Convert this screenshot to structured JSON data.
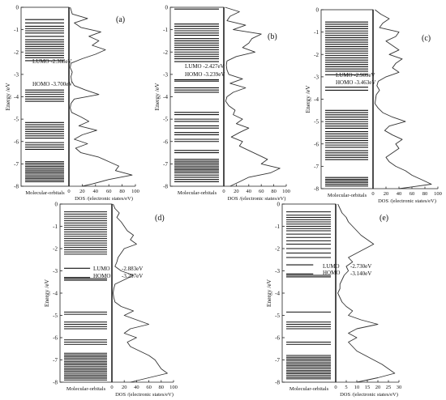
{
  "chart_data": [
    {
      "type": "line",
      "panel_label": "(a)",
      "ylabel": "Energy /eV",
      "ylim": [
        -8,
        0
      ],
      "yticks": [
        "0",
        "-1",
        "-2",
        "-3",
        "-4",
        "-5",
        "-6",
        "-7",
        "-8"
      ],
      "left_xlabel": "Molecular-orbitals",
      "xlabel": "DOS /(electronic states/eV)",
      "xlim": [
        0,
        100
      ],
      "xticks": [
        "0",
        "20",
        "40",
        "60",
        "80",
        "100"
      ],
      "lumo_label": "LUMO  -2.388eV",
      "homo_label": "HOMO  -3.700eV",
      "lumo": -2.388,
      "homo": -3.7,
      "orbitals": [
        -0.55,
        -0.7,
        -0.85,
        -0.95,
        -1.05,
        -1.15,
        -1.3,
        -1.45,
        -1.55,
        -1.65,
        -1.75,
        -1.85,
        -1.95,
        -2.05,
        -2.15,
        -2.25,
        -2.388,
        -3.7,
        -3.8,
        -3.9,
        -4.0,
        -4.1,
        -4.2,
        -5.15,
        -5.25,
        -5.35,
        -5.45,
        -5.55,
        -5.65,
        -5.75,
        -5.85,
        -6.05,
        -6.15,
        -6.25,
        -6.35,
        -6.9,
        -6.97,
        -7.05,
        -7.12,
        -7.2,
        -7.28,
        -7.35,
        -7.42,
        -7.5,
        -7.58,
        -7.65,
        -7.72,
        -7.8
      ],
      "dos_energy": [
        0,
        -0.3,
        -0.5,
        -0.7,
        -0.9,
        -1.1,
        -1.3,
        -1.5,
        -1.7,
        -1.9,
        -2.1,
        -2.3,
        -2.5,
        -2.7,
        -2.9,
        -3.1,
        -3.3,
        -3.5,
        -3.7,
        -3.9,
        -4.1,
        -4.3,
        -4.5,
        -4.7,
        -4.9,
        -5.1,
        -5.3,
        -5.5,
        -5.7,
        -5.9,
        -6.1,
        -6.3,
        -6.5,
        -6.7,
        -6.9,
        -7.1,
        -7.3,
        -7.5,
        -7.7,
        -7.9,
        -8.0
      ],
      "dos_values": [
        2,
        5,
        28,
        8,
        18,
        48,
        30,
        45,
        35,
        55,
        40,
        20,
        3,
        2,
        5,
        3,
        4,
        8,
        25,
        45,
        8,
        3,
        2,
        4,
        18,
        30,
        15,
        42,
        20,
        8,
        28,
        10,
        18,
        45,
        60,
        75,
        70,
        95,
        60,
        35,
        20
      ]
    },
    {
      "type": "line",
      "panel_label": "(b)",
      "ylabel": "Energy /eV",
      "ylim": [
        -8,
        0
      ],
      "yticks": [
        "0",
        "-1",
        "-2",
        "-3",
        "-4",
        "-5",
        "-6",
        "-7",
        "-8"
      ],
      "left_xlabel": "Molecular-orbitals",
      "xlabel": "DOS /(electronic states/eV)",
      "xlim": [
        0,
        100
      ],
      "xticks": [
        "0",
        "20",
        "40",
        "60",
        "80",
        "100"
      ],
      "lumo_label": "LUMO  -2.427eV",
      "homo_label": "HOMO  -3.239eV",
      "lumo": -2.427,
      "homo": -3.239,
      "orbitals": [
        -0.08,
        -0.75,
        -0.85,
        -0.95,
        -1.05,
        -1.15,
        -1.25,
        -1.4,
        -1.5,
        -1.6,
        -1.7,
        -1.8,
        -1.9,
        -2.0,
        -2.1,
        -2.2,
        -2.3,
        -2.427,
        -3.239,
        -3.3,
        -3.6,
        -3.7,
        -3.8,
        -4.7,
        -4.8,
        -5.0,
        -5.1,
        -5.3,
        -5.4,
        -5.6,
        -5.7,
        -5.9,
        -6.0,
        -6.4,
        -6.5,
        -6.8,
        -6.88,
        -6.95,
        -7.02,
        -7.1,
        -7.18,
        -7.25,
        -7.32,
        -7.4,
        -7.5,
        -7.6,
        -7.7,
        -7.8
      ],
      "dos_energy": [
        0,
        -0.2,
        -0.4,
        -0.6,
        -0.8,
        -1.0,
        -1.2,
        -1.4,
        -1.6,
        -1.8,
        -2.0,
        -2.2,
        -2.4,
        -2.6,
        -2.8,
        -3.0,
        -3.2,
        -3.4,
        -3.6,
        -3.8,
        -4.0,
        -4.2,
        -4.4,
        -4.6,
        -4.8,
        -5.0,
        -5.2,
        -5.4,
        -5.6,
        -5.8,
        -6.0,
        -6.2,
        -6.4,
        -6.6,
        -6.8,
        -7.0,
        -7.2,
        -7.4,
        -7.6,
        -7.8,
        -8.0
      ],
      "dos_values": [
        2,
        25,
        10,
        5,
        35,
        15,
        60,
        45,
        40,
        30,
        50,
        20,
        5,
        4,
        5,
        8,
        30,
        10,
        35,
        15,
        5,
        3,
        8,
        18,
        15,
        30,
        20,
        40,
        25,
        12,
        30,
        25,
        40,
        55,
        70,
        60,
        90,
        75,
        40,
        25,
        10
      ]
    },
    {
      "type": "line",
      "panel_label": "(c)",
      "ylabel": "Energy /eV",
      "ylim": [
        -8,
        0
      ],
      "yticks": [
        "0",
        "-1",
        "-2",
        "-3",
        "-4",
        "-5",
        "-6",
        "-7",
        "-8"
      ],
      "left_xlabel": "Molecular-orbitals",
      "xlabel": "DOS /(electronic states/eV)",
      "xlim": [
        0,
        100
      ],
      "xticks": [
        "0",
        "20",
        "40",
        "60",
        "80",
        "100"
      ],
      "lumo_label": "LUMO  -2.909eV",
      "homo_label": "HOMO  -3.463eV",
      "lumo": -2.909,
      "homo": -3.463,
      "orbitals": [
        -0.55,
        -0.65,
        -0.75,
        -0.85,
        -0.95,
        -1.05,
        -1.15,
        -1.25,
        -1.35,
        -1.45,
        -1.55,
        -1.65,
        -1.75,
        -1.85,
        -1.95,
        -2.05,
        -2.15,
        -2.25,
        -2.35,
        -2.45,
        -2.55,
        -2.65,
        -2.75,
        -2.909,
        -3.463,
        -3.6,
        -4.5,
        -4.6,
        -4.7,
        -4.8,
        -4.9,
        -5.0,
        -5.1,
        -5.2,
        -5.3,
        -5.45,
        -5.55,
        -5.65,
        -5.75,
        -5.85,
        -5.95,
        -6.05,
        -6.15,
        -6.3,
        -6.4,
        -6.5,
        -6.6,
        -6.7,
        -7.5,
        -7.58,
        -7.65,
        -7.72,
        -7.8,
        -7.88
      ],
      "dos_energy": [
        0,
        -0.2,
        -0.4,
        -0.6,
        -0.8,
        -1.0,
        -1.2,
        -1.4,
        -1.6,
        -1.8,
        -2.0,
        -2.2,
        -2.4,
        -2.6,
        -2.8,
        -3.0,
        -3.2,
        -3.4,
        -3.6,
        -3.8,
        -4.0,
        -4.2,
        -4.4,
        -4.6,
        -4.8,
        -5.0,
        -5.2,
        -5.4,
        -5.6,
        -5.8,
        -6.0,
        -6.2,
        -6.4,
        -6.6,
        -6.8,
        -7.0,
        -7.2,
        -7.4,
        -7.6,
        -7.8,
        -8.0
      ],
      "dos_values": [
        3,
        12,
        25,
        15,
        10,
        40,
        35,
        20,
        30,
        40,
        25,
        45,
        35,
        30,
        40,
        20,
        8,
        6,
        10,
        5,
        4,
        3,
        8,
        15,
        30,
        50,
        25,
        18,
        30,
        45,
        35,
        40,
        30,
        20,
        25,
        35,
        50,
        60,
        75,
        90,
        40
      ]
    },
    {
      "type": "line",
      "panel_label": "(d)",
      "ylabel": "Energy /eV",
      "ylim": [
        -8,
        0
      ],
      "yticks": [
        "0",
        "-1",
        "-2",
        "-3",
        "-4",
        "-5",
        "-6",
        "-7",
        "-8"
      ],
      "left_xlabel": "Molecular-orbitals",
      "xlabel": "DOS /(electronic states/eV)",
      "xlim": [
        0,
        100
      ],
      "xticks": [
        "0",
        "20",
        "40",
        "60",
        "80",
        "100"
      ],
      "lumo_label": "LUMO",
      "homo_label": "HOMO",
      "lumo_value": "-2.883eV",
      "homo_value": "-3.297eV",
      "lumo": -2.883,
      "homo": -3.297,
      "orbitals": [
        -0.35,
        -0.45,
        -0.55,
        -0.65,
        -0.75,
        -0.85,
        -0.95,
        -1.05,
        -1.15,
        -1.25,
        -1.35,
        -1.45,
        -1.55,
        -1.65,
        -1.75,
        -1.85,
        -1.95,
        -2.05,
        -2.15,
        -2.25,
        -2.883,
        -3.297,
        -3.35,
        -3.42,
        -4.85,
        -4.95,
        -5.3,
        -5.4,
        -5.5,
        -5.6,
        -6.1,
        -6.2,
        -6.3,
        -6.7,
        -6.78,
        -6.85,
        -6.92,
        -7.0,
        -7.08,
        -7.15,
        -7.22,
        -7.3,
        -7.38,
        -7.45,
        -7.52,
        -7.6,
        -7.68,
        -7.75,
        -7.82,
        -7.9
      ],
      "dos_energy": [
        0,
        -0.2,
        -0.4,
        -0.6,
        -0.8,
        -1.0,
        -1.2,
        -1.4,
        -1.6,
        -1.8,
        -2.0,
        -2.2,
        -2.4,
        -2.6,
        -2.8,
        -3.0,
        -3.2,
        -3.4,
        -3.6,
        -3.8,
        -4.0,
        -4.2,
        -4.4,
        -4.6,
        -4.8,
        -5.0,
        -5.2,
        -5.4,
        -5.6,
        -5.8,
        -6.0,
        -6.2,
        -6.4,
        -6.6,
        -6.8,
        -7.0,
        -7.2,
        -7.4,
        -7.6,
        -7.8,
        -8.0
      ],
      "dos_values": [
        2,
        5,
        12,
        8,
        15,
        20,
        25,
        35,
        30,
        40,
        20,
        15,
        10,
        8,
        5,
        15,
        35,
        20,
        5,
        3,
        2,
        3,
        5,
        15,
        35,
        20,
        40,
        60,
        30,
        20,
        40,
        25,
        30,
        45,
        60,
        70,
        75,
        80,
        90,
        60,
        30
      ]
    },
    {
      "type": "line",
      "panel_label": "(e)",
      "ylabel": "Energy /eV",
      "ylim": [
        -8,
        0
      ],
      "yticks": [
        "0",
        "-1",
        "-2",
        "-3",
        "-4",
        "-5",
        "-6",
        "-7",
        "-8"
      ],
      "left_xlabel": "Molecular-orbitals",
      "xlabel": "DOS /(electronic states/eV)",
      "xlim": [
        0,
        30
      ],
      "xticks": [
        "0",
        "5",
        "10",
        "15",
        "20",
        "25",
        "30"
      ],
      "lumo_label": "LUMO",
      "homo_label": "HOMO",
      "lumo_value": "-2.730eV",
      "homo_value": "-3.140eV",
      "lumo": -2.73,
      "homo": -3.14,
      "orbitals": [
        -0.35,
        -0.5,
        -0.6,
        -0.7,
        -0.8,
        -0.9,
        -1.0,
        -1.1,
        -1.2,
        -1.35,
        -1.5,
        -1.65,
        -1.8,
        -2.0,
        -2.2,
        -2.4,
        -2.73,
        -3.14,
        -3.2,
        -3.27,
        -4.85,
        -5.3,
        -5.4,
        -5.5,
        -5.6,
        -6.2,
        -6.3,
        -6.8,
        -6.88,
        -6.95,
        -7.02,
        -7.1,
        -7.18,
        -7.25,
        -7.32,
        -7.4,
        -7.48,
        -7.55,
        -7.62,
        -7.7,
        -7.78,
        -7.85
      ],
      "dos_energy": [
        0,
        -0.2,
        -0.4,
        -0.6,
        -0.8,
        -1.0,
        -1.2,
        -1.4,
        -1.6,
        -1.8,
        -2.0,
        -2.2,
        -2.4,
        -2.6,
        -2.8,
        -3.0,
        -3.2,
        -3.4,
        -3.6,
        -3.8,
        -4.0,
        -4.2,
        -4.4,
        -4.6,
        -4.8,
        -5.0,
        -5.2,
        -5.4,
        -5.6,
        -5.8,
        -6.0,
        -6.2,
        -6.4,
        -6.6,
        -6.8,
        -7.0,
        -7.2,
        -7.4,
        -7.6,
        -7.8,
        -8.0
      ],
      "dos_values": [
        1,
        2,
        3,
        5,
        6,
        8,
        10,
        12,
        15,
        18,
        14,
        10,
        6,
        8,
        5,
        6,
        4,
        3,
        2,
        2,
        1,
        2,
        3,
        5,
        8,
        6,
        12,
        20,
        10,
        6,
        10,
        6,
        8,
        10,
        14,
        18,
        22,
        25,
        28,
        20,
        10
      ]
    }
  ]
}
